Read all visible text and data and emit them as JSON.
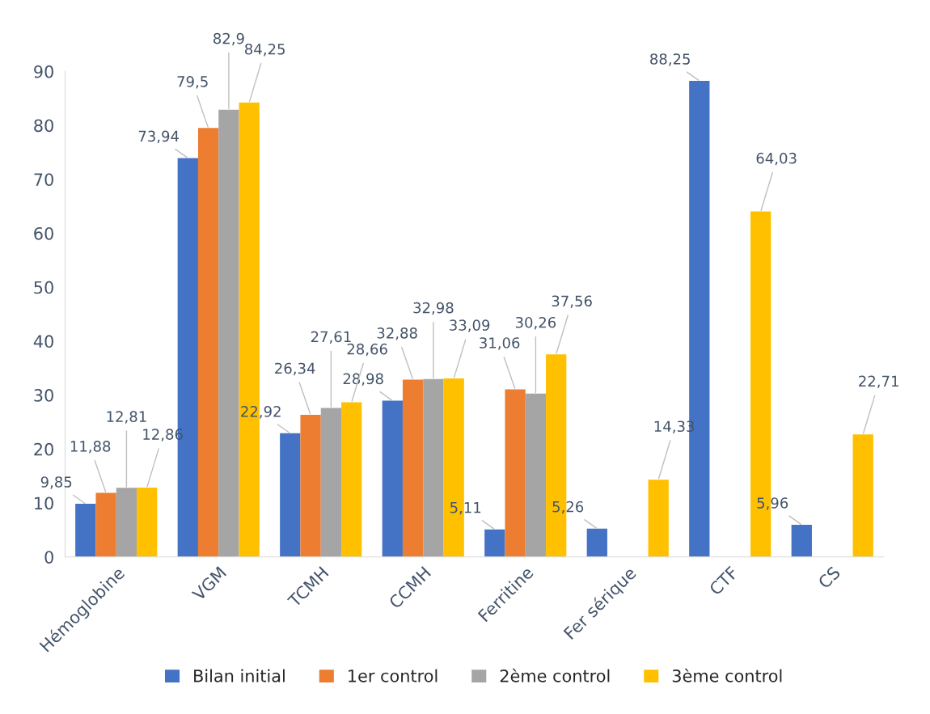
{
  "chart_data": {
    "type": "bar",
    "categories": [
      "Hémoglobine",
      "VGM",
      "TCMH",
      "CCMH",
      "Ferritine",
      "Fer sérique",
      "CTF",
      "CS"
    ],
    "series": [
      {
        "name": "Bilan initial",
        "color": "#4472c4",
        "values": [
          9.85,
          73.94,
          22.92,
          28.98,
          5.11,
          5.26,
          88.25,
          5.96
        ],
        "value_labels": [
          "9,85",
          "73,94",
          "22,92",
          "28,98",
          "5,11",
          "5,26",
          "88,25",
          "5,96"
        ]
      },
      {
        "name": "1er control",
        "color": "#ed7d31",
        "values": [
          11.88,
          79.5,
          26.34,
          32.88,
          31.06,
          null,
          null,
          null
        ],
        "value_labels": [
          "11,88",
          "79,5",
          "26,34",
          "32,88",
          "31,06",
          null,
          null,
          null
        ]
      },
      {
        "name": "2ème control",
        "color": "#a5a5a5",
        "values": [
          12.81,
          82.9,
          27.61,
          32.98,
          30.26,
          null,
          null,
          null
        ],
        "value_labels": [
          "12,81",
          "82,9",
          "27,61",
          "32,98",
          "30,26",
          null,
          null,
          null
        ]
      },
      {
        "name": "3ème control",
        "color": "#ffc000",
        "values": [
          12.86,
          84.25,
          28.66,
          33.09,
          37.56,
          14.33,
          64.03,
          22.71
        ],
        "value_labels": [
          "12,86",
          "84,25",
          "28,66",
          "33,09",
          "37,56",
          "14,33",
          "64,03",
          "22,71"
        ]
      }
    ],
    "ylim": [
      0,
      90
    ],
    "yticks": [
      0,
      10,
      20,
      30,
      40,
      50,
      60,
      70,
      80,
      90
    ],
    "legend": "bottom"
  }
}
